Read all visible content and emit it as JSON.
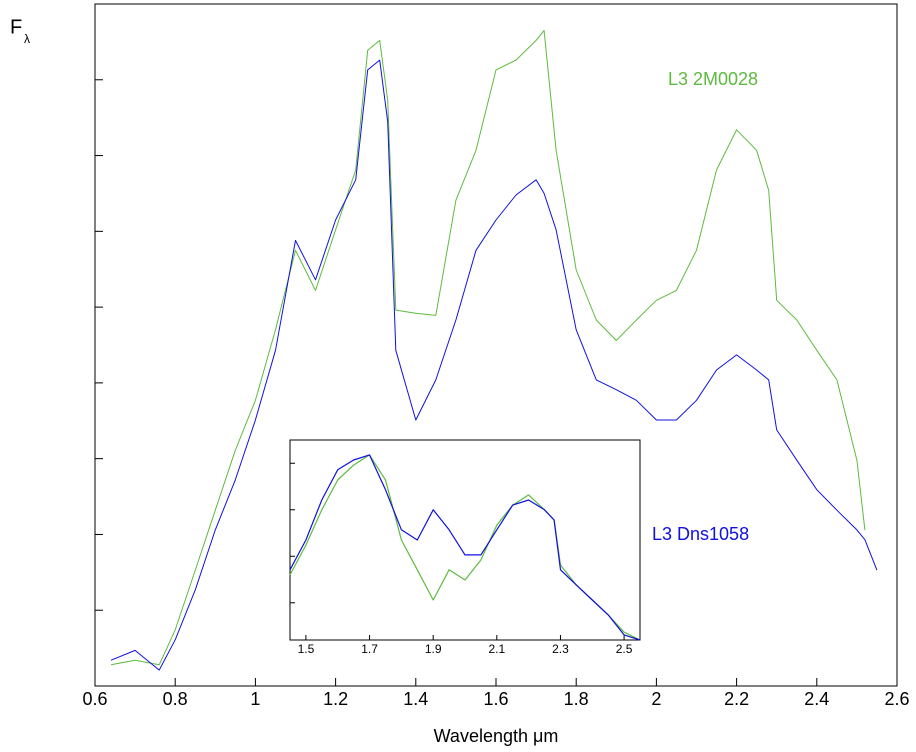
{
  "chart_data": [
    {
      "type": "line",
      "xlabel": "Wavelength μm",
      "ylabel": "F",
      "ylabel_sub": "λ",
      "x": [
        0.64,
        0.7,
        0.76,
        0.8,
        0.85,
        0.9,
        0.95,
        1.0,
        1.05,
        1.1,
        1.15,
        1.2,
        1.25,
        1.28,
        1.31,
        1.33,
        1.35,
        1.4,
        1.45,
        1.5,
        1.55,
        1.6,
        1.65,
        1.7,
        1.72,
        1.75,
        1.8,
        1.85,
        1.9,
        1.95,
        2.0,
        2.05,
        2.1,
        2.15,
        2.2,
        2.25,
        2.28,
        2.3,
        2.35,
        2.4,
        2.45,
        2.5,
        2.52,
        2.55
      ],
      "series": [
        {
          "name": "L3 2M0028",
          "color": "#5dbb3f",
          "values": [
            0.28,
            0.34,
            0.28,
            0.74,
            1.53,
            2.32,
            3.11,
            3.77,
            4.7,
            5.75,
            5.22,
            6.02,
            6.81,
            8.39,
            8.52,
            7.73,
            4.96,
            4.92,
            4.89,
            6.41,
            7.07,
            8.13,
            8.26,
            8.52,
            8.65,
            7.07,
            5.49,
            4.83,
            4.56,
            4.83,
            5.09,
            5.22,
            5.75,
            6.81,
            7.34,
            7.07,
            6.54,
            5.09,
            4.83,
            4.43,
            4.04,
            2.98,
            2.06,
            null
          ]
        },
        {
          "name": "L3 Dns1058",
          "color": "#1010e0",
          "values": [
            0.34,
            0.47,
            0.21,
            0.61,
            1.27,
            2.06,
            2.72,
            3.51,
            4.43,
            5.88,
            5.36,
            6.15,
            6.68,
            8.13,
            8.26,
            7.45,
            4.43,
            3.51,
            4.04,
            4.83,
            5.75,
            6.15,
            6.48,
            6.68,
            6.5,
            6.02,
            4.7,
            4.04,
            3.91,
            3.77,
            3.51,
            3.51,
            3.77,
            4.17,
            4.37,
            4.17,
            4.04,
            3.38,
            2.98,
            2.59,
            2.32,
            2.06,
            1.93,
            1.53
          ]
        }
      ],
      "xlim": [
        0.6,
        2.6
      ],
      "xticks": [
        0.6,
        0.8,
        1,
        1.2,
        1.4,
        1.6,
        1.8,
        2,
        2.2,
        2.4,
        2.6
      ],
      "ylim": [
        0,
        9
      ],
      "yticks": [
        1,
        2,
        3,
        4,
        5,
        6,
        7,
        8
      ]
    },
    {
      "type": "line",
      "x": [
        1.45,
        1.5,
        1.55,
        1.6,
        1.65,
        1.7,
        1.75,
        1.8,
        1.85,
        1.9,
        1.95,
        2.0,
        2.05,
        2.1,
        2.15,
        2.2,
        2.25,
        2.28,
        2.3,
        2.35,
        2.4,
        2.45,
        2.5,
        2.55
      ],
      "series": [
        {
          "color": "#5dbb3f",
          "values": [
            1.4,
            2.04,
            2.8,
            3.44,
            3.76,
            3.98,
            3.44,
            2.15,
            1.51,
            0.86,
            1.51,
            1.29,
            1.72,
            2.47,
            2.9,
            3.12,
            2.8,
            2.58,
            1.61,
            1.18,
            0.86,
            0.54,
            0.17,
            0
          ]
        },
        {
          "color": "#1010e0",
          "values": [
            1.51,
            2.15,
            3.01,
            3.66,
            3.87,
            3.98,
            3.23,
            2.37,
            2.15,
            2.8,
            2.37,
            1.83,
            1.83,
            2.37,
            2.9,
            3.01,
            2.8,
            2.58,
            1.51,
            1.18,
            0.86,
            0.54,
            0.11,
            0
          ]
        }
      ],
      "xlim": [
        1.45,
        2.55
      ],
      "xticks": [
        1.5,
        1.7,
        1.9,
        2.1,
        2.3,
        2.5
      ],
      "ylim": [
        0,
        4.3
      ],
      "yticks": [
        0.8,
        1.8,
        2.8,
        3.8
      ]
    }
  ]
}
